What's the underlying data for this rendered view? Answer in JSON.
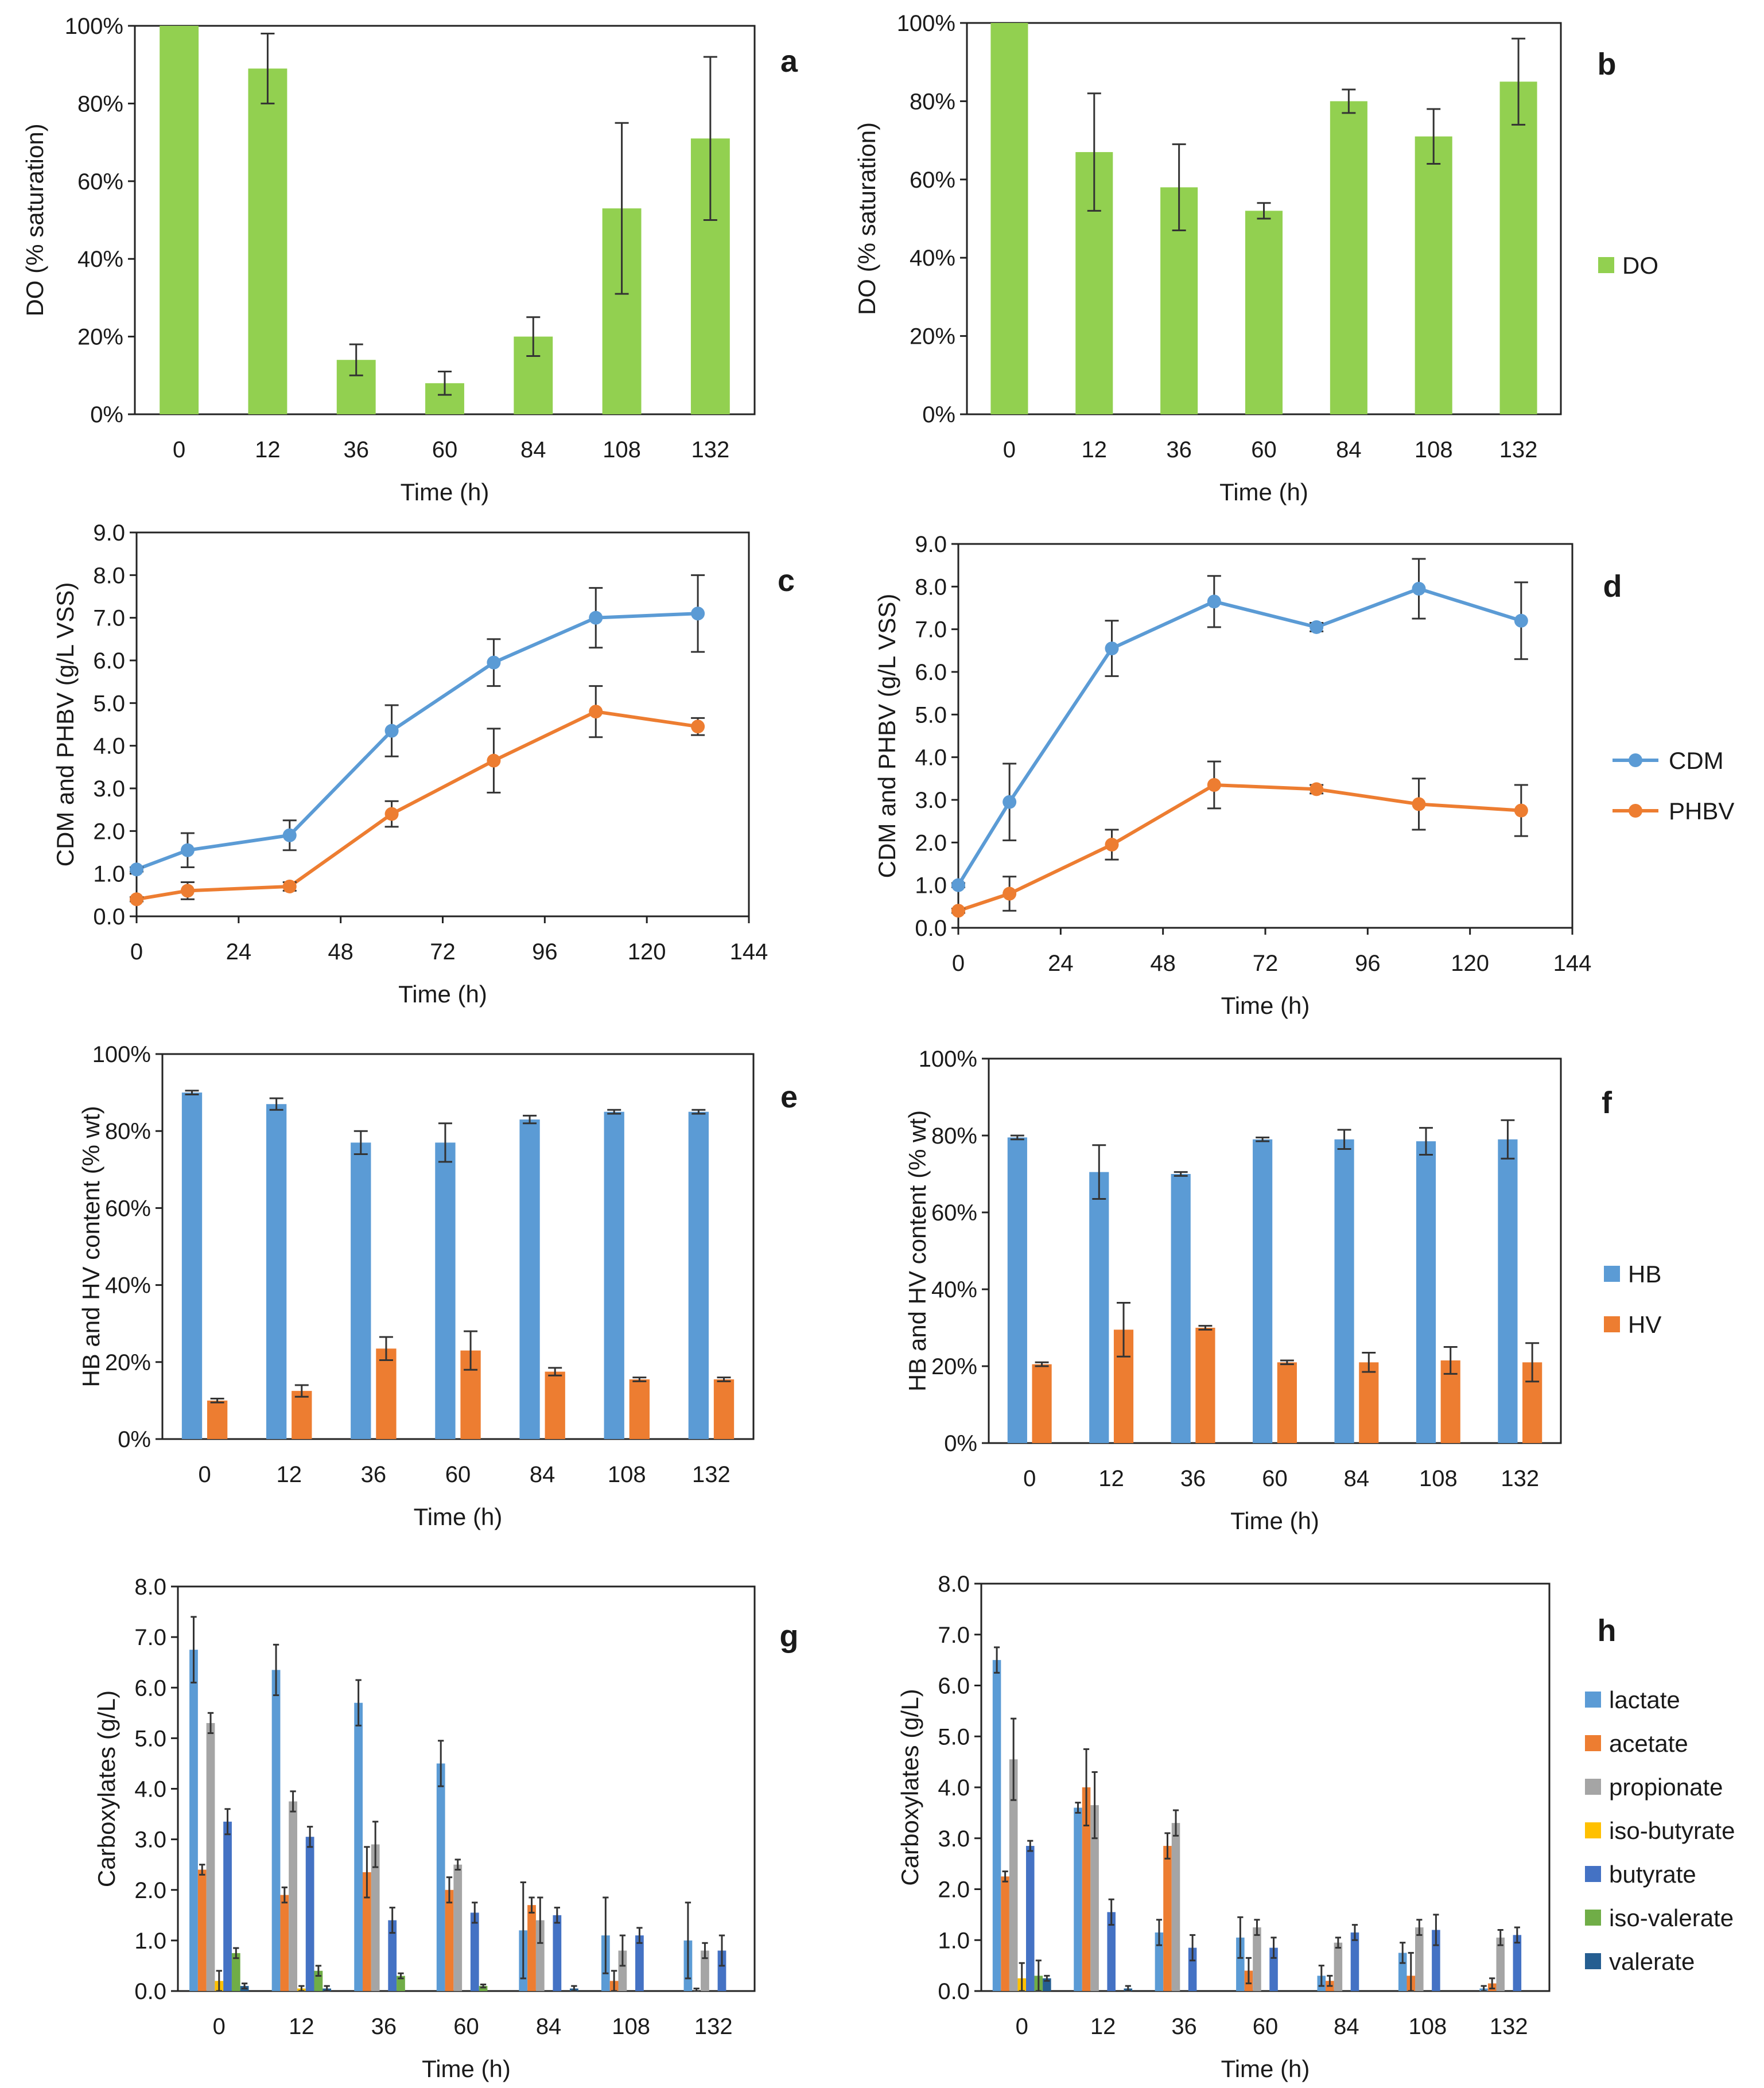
{
  "colors": {
    "do": "#92d050",
    "cdm": "#5b9bd5",
    "phbv": "#ed7d31",
    "hb": "#5b9bd5",
    "hv": "#ed7d31",
    "lactate": "#5b9bd5",
    "acetate": "#ed7d31",
    "propionate": "#a5a5a5",
    "iso-butyrate": "#ffc000",
    "butyrate": "#4472c4",
    "iso-valerate": "#70ad47",
    "valerate": "#255e91",
    "error": "#333333"
  },
  "chart_data": [
    {
      "id": "a",
      "type": "bar",
      "panel_label": "a",
      "xlabel": "Time (h)",
      "ylabel": "DO (% saturation)",
      "categories": [
        "0",
        "12",
        "36",
        "60",
        "84",
        "108",
        "132"
      ],
      "ylim": [
        0,
        100
      ],
      "yticks": [
        "0%",
        "20%",
        "40%",
        "60%",
        "80%",
        "100%"
      ],
      "series": [
        {
          "name": "DO",
          "color_key": "do",
          "values": [
            100,
            89,
            14,
            8,
            20,
            53,
            71
          ],
          "errors": [
            0,
            9,
            4,
            3,
            5,
            22,
            21
          ]
        }
      ]
    },
    {
      "id": "b",
      "type": "bar",
      "panel_label": "b",
      "xlabel": "Time (h)",
      "ylabel": "DO (% saturation)",
      "categories": [
        "0",
        "12",
        "36",
        "60",
        "84",
        "108",
        "132"
      ],
      "ylim": [
        0,
        100
      ],
      "yticks": [
        "0%",
        "20%",
        "40%",
        "60%",
        "80%",
        "100%"
      ],
      "legend": [
        "DO"
      ],
      "series": [
        {
          "name": "DO",
          "color_key": "do",
          "values": [
            100,
            67,
            58,
            52,
            80,
            71,
            85
          ],
          "errors": [
            0,
            15,
            11,
            2,
            3,
            7,
            11
          ]
        }
      ]
    },
    {
      "id": "c",
      "type": "line",
      "panel_label": "c",
      "xlabel": "Time (h)",
      "ylabel": "CDM and PHBV (g/L VSS)",
      "xlim": [
        0,
        144
      ],
      "xticks": [
        "0",
        "24",
        "48",
        "72",
        "96",
        "120",
        "144"
      ],
      "ylim": [
        0,
        9
      ],
      "yticks": [
        "0.0",
        "1.0",
        "2.0",
        "3.0",
        "4.0",
        "5.0",
        "6.0",
        "7.0",
        "8.0",
        "9.0"
      ],
      "x": [
        0,
        12,
        36,
        60,
        84,
        108,
        132
      ],
      "series": [
        {
          "name": "CDM",
          "color_key": "cdm",
          "values": [
            1.1,
            1.55,
            1.9,
            4.35,
            5.95,
            7.0,
            7.1
          ],
          "errors": [
            0.05,
            0.4,
            0.35,
            0.6,
            0.55,
            0.7,
            0.9
          ]
        },
        {
          "name": "PHBV",
          "color_key": "phbv",
          "values": [
            0.4,
            0.6,
            0.7,
            2.4,
            3.65,
            4.8,
            4.45
          ],
          "errors": [
            0.05,
            0.2,
            0.1,
            0.3,
            0.75,
            0.6,
            0.2
          ]
        }
      ]
    },
    {
      "id": "d",
      "type": "line",
      "panel_label": "d",
      "xlabel": "Time (h)",
      "ylabel": "CDM and PHBV (g/L VSS)",
      "xlim": [
        0,
        144
      ],
      "xticks": [
        "0",
        "24",
        "48",
        "72",
        "96",
        "120",
        "144"
      ],
      "ylim": [
        0,
        9
      ],
      "yticks": [
        "0.0",
        "1.0",
        "2.0",
        "3.0",
        "4.0",
        "5.0",
        "6.0",
        "7.0",
        "8.0",
        "9.0"
      ],
      "x": [
        0,
        12,
        36,
        60,
        84,
        108,
        132
      ],
      "legend": [
        "CDM",
        "PHBV"
      ],
      "series": [
        {
          "name": "CDM",
          "color_key": "cdm",
          "values": [
            1.0,
            2.95,
            6.55,
            7.65,
            7.05,
            7.95,
            7.2
          ],
          "errors": [
            0.05,
            0.9,
            0.65,
            0.6,
            0.1,
            0.7,
            0.9
          ]
        },
        {
          "name": "PHBV",
          "color_key": "phbv",
          "values": [
            0.4,
            0.8,
            1.95,
            3.35,
            3.25,
            2.9,
            2.75
          ],
          "errors": [
            0.05,
            0.4,
            0.35,
            0.55,
            0.1,
            0.6,
            0.6
          ]
        }
      ]
    },
    {
      "id": "e",
      "type": "bar",
      "panel_label": "e",
      "xlabel": "Time (h)",
      "ylabel": "HB and HV content (% wt)",
      "categories": [
        "0",
        "12",
        "36",
        "60",
        "84",
        "108",
        "132"
      ],
      "ylim": [
        0,
        100
      ],
      "yticks": [
        "0%",
        "20%",
        "40%",
        "60%",
        "80%",
        "100%"
      ],
      "series": [
        {
          "name": "HB",
          "color_key": "hb",
          "values": [
            90,
            87,
            77,
            77,
            83,
            85,
            85
          ],
          "errors": [
            0.5,
            1.5,
            3,
            5,
            1,
            0.5,
            0.5
          ]
        },
        {
          "name": "HV",
          "color_key": "hv",
          "values": [
            10,
            12.5,
            23.5,
            23,
            17.5,
            15.5,
            15.5
          ],
          "errors": [
            0.5,
            1.5,
            3,
            5,
            1,
            0.5,
            0.5
          ]
        }
      ]
    },
    {
      "id": "f",
      "type": "bar",
      "panel_label": "f",
      "xlabel": "Time (h)",
      "ylabel": "HB and HV content (% wt)",
      "categories": [
        "0",
        "12",
        "36",
        "60",
        "84",
        "108",
        "132"
      ],
      "ylim": [
        0,
        100
      ],
      "yticks": [
        "0%",
        "20%",
        "40%",
        "60%",
        "80%",
        "100%"
      ],
      "legend": [
        "HB",
        "HV"
      ],
      "series": [
        {
          "name": "HB",
          "color_key": "hb",
          "values": [
            79.5,
            70.5,
            70,
            79,
            79,
            78.5,
            79
          ],
          "errors": [
            0.5,
            7,
            0.5,
            0.5,
            2.5,
            3.5,
            5
          ]
        },
        {
          "name": "HV",
          "color_key": "hv",
          "values": [
            20.5,
            29.5,
            30,
            21,
            21,
            21.5,
            21
          ],
          "errors": [
            0.5,
            7,
            0.5,
            0.5,
            2.5,
            3.5,
            5
          ]
        }
      ]
    },
    {
      "id": "g",
      "type": "bar",
      "panel_label": "g",
      "xlabel": "Time (h)",
      "ylabel": "Carboxylates (g/L)",
      "categories": [
        "0",
        "12",
        "36",
        "60",
        "84",
        "108",
        "132"
      ],
      "ylim": [
        0,
        8
      ],
      "yticks": [
        "0.0",
        "1.0",
        "2.0",
        "3.0",
        "4.0",
        "5.0",
        "6.0",
        "7.0",
        "8.0"
      ],
      "series": [
        {
          "name": "lactate",
          "color_key": "lactate",
          "values": [
            6.75,
            6.35,
            5.7,
            4.5,
            1.2,
            1.1,
            1.0
          ],
          "errors": [
            0.65,
            0.5,
            0.45,
            0.45,
            0.95,
            0.75,
            0.75
          ]
        },
        {
          "name": "acetate",
          "color_key": "acetate",
          "values": [
            2.4,
            1.9,
            2.35,
            2.0,
            1.7,
            0.2,
            0.0
          ],
          "errors": [
            0.1,
            0.15,
            0.5,
            0.25,
            0.15,
            0.2,
            0.05
          ]
        },
        {
          "name": "propionate",
          "color_key": "propionate",
          "values": [
            5.3,
            3.75,
            2.9,
            2.5,
            1.4,
            0.8,
            0.8
          ],
          "errors": [
            0.2,
            0.2,
            0.45,
            0.1,
            0.45,
            0.3,
            0.15
          ]
        },
        {
          "name": "iso-butyrate",
          "color_key": "iso-butyrate",
          "values": [
            0.2,
            0.05,
            0.0,
            0.0,
            0.0,
            0.0,
            0.0
          ],
          "errors": [
            0.2,
            0.05,
            0,
            0,
            0,
            0,
            0
          ]
        },
        {
          "name": "butyrate",
          "color_key": "butyrate",
          "values": [
            3.35,
            3.05,
            1.4,
            1.55,
            1.5,
            1.1,
            0.8
          ],
          "errors": [
            0.25,
            0.2,
            0.25,
            0.2,
            0.15,
            0.15,
            0.3
          ]
        },
        {
          "name": "iso-valerate",
          "color_key": "iso-valerate",
          "values": [
            0.75,
            0.4,
            0.3,
            0.1,
            0.0,
            0.0,
            0.0
          ],
          "errors": [
            0.1,
            0.1,
            0.05,
            0.03,
            0,
            0,
            0
          ]
        },
        {
          "name": "valerate",
          "color_key": "valerate",
          "values": [
            0.1,
            0.05,
            0.0,
            0.0,
            0.05,
            0.0,
            0.0
          ],
          "errors": [
            0.05,
            0.05,
            0,
            0,
            0.05,
            0,
            0
          ]
        }
      ]
    },
    {
      "id": "h",
      "type": "bar",
      "panel_label": "h",
      "xlabel": "Time (h)",
      "ylabel": "Carboxylates (g/L)",
      "categories": [
        "0",
        "12",
        "36",
        "60",
        "84",
        "108",
        "132"
      ],
      "ylim": [
        0,
        8
      ],
      "yticks": [
        "0.0",
        "1.0",
        "2.0",
        "3.0",
        "4.0",
        "5.0",
        "6.0",
        "7.0",
        "8.0"
      ],
      "legend": [
        "lactate",
        "acetate",
        "propionate",
        "iso-butyrate",
        "butyrate",
        "iso-valerate",
        "valerate"
      ],
      "series": [
        {
          "name": "lactate",
          "color_key": "lactate",
          "values": [
            6.5,
            3.6,
            1.15,
            1.05,
            0.3,
            0.75,
            0.05
          ],
          "errors": [
            0.25,
            0.1,
            0.25,
            0.4,
            0.2,
            0.2,
            0.05
          ]
        },
        {
          "name": "acetate",
          "color_key": "acetate",
          "values": [
            2.25,
            4.0,
            2.85,
            0.4,
            0.2,
            0.3,
            0.15
          ],
          "errors": [
            0.1,
            0.75,
            0.25,
            0.25,
            0.1,
            0.45,
            0.1
          ]
        },
        {
          "name": "propionate",
          "color_key": "propionate",
          "values": [
            4.55,
            3.65,
            3.3,
            1.25,
            0.95,
            1.25,
            1.05
          ],
          "errors": [
            0.8,
            0.65,
            0.25,
            0.15,
            0.1,
            0.15,
            0.15
          ]
        },
        {
          "name": "iso-butyrate",
          "color_key": "iso-butyrate",
          "values": [
            0.25,
            0.0,
            0.0,
            0.0,
            0.0,
            0.0,
            0.0
          ],
          "errors": [
            0.3,
            0,
            0,
            0,
            0,
            0,
            0
          ]
        },
        {
          "name": "butyrate",
          "color_key": "butyrate",
          "values": [
            2.85,
            1.55,
            0.85,
            0.85,
            1.15,
            1.2,
            1.1
          ],
          "errors": [
            0.1,
            0.25,
            0.25,
            0.2,
            0.15,
            0.3,
            0.15
          ]
        },
        {
          "name": "iso-valerate",
          "color_key": "iso-valerate",
          "values": [
            0.3,
            0.0,
            0.0,
            0.0,
            0.0,
            0.0,
            0.0
          ],
          "errors": [
            0.3,
            0,
            0,
            0,
            0,
            0,
            0
          ]
        },
        {
          "name": "valerate",
          "color_key": "valerate",
          "values": [
            0.25,
            0.05,
            0.0,
            0.0,
            0.0,
            0.0,
            0.0
          ],
          "errors": [
            0.05,
            0.05,
            0,
            0,
            0,
            0,
            0
          ]
        }
      ]
    }
  ]
}
